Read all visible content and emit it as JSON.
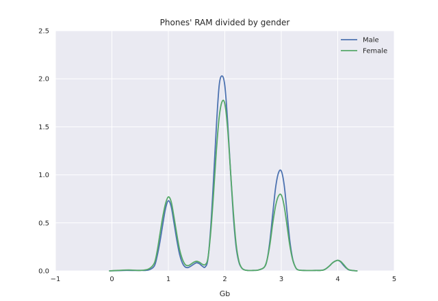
{
  "chart_data": {
    "type": "line",
    "title": "Phones' RAM divided by gender",
    "xlabel": "Gb",
    "ylabel": "",
    "xlim": [
      -1,
      5
    ],
    "ylim": [
      0,
      2.5
    ],
    "xticks": [
      "−1",
      "0",
      "1",
      "2",
      "3",
      "4",
      "5"
    ],
    "yticks": [
      "0.0",
      "0.5",
      "1.0",
      "1.5",
      "2.0",
      "2.5"
    ],
    "grid": true,
    "legend_position": "top-right",
    "series": [
      {
        "name": "Male",
        "color": "#4c72b0",
        "x": [
          -0.05,
          0.2,
          0.5,
          0.65,
          0.75,
          0.8,
          0.85,
          0.9,
          0.95,
          1.0,
          1.05,
          1.1,
          1.15,
          1.2,
          1.25,
          1.3,
          1.35,
          1.4,
          1.45,
          1.5,
          1.55,
          1.6,
          1.65,
          1.7,
          1.75,
          1.8,
          1.85,
          1.9,
          1.95,
          2.0,
          2.05,
          2.1,
          2.15,
          2.2,
          2.25,
          2.3,
          2.35,
          2.4,
          2.5,
          2.6,
          2.7,
          2.75,
          2.8,
          2.85,
          2.9,
          2.95,
          3.0,
          3.05,
          3.1,
          3.15,
          3.2,
          3.25,
          3.3,
          3.4,
          3.6,
          3.75,
          3.85,
          3.9,
          3.95,
          4.0,
          4.05,
          4.1,
          4.15,
          4.2,
          4.3,
          4.35
        ],
        "y": [
          0.0,
          0.005,
          0.005,
          0.01,
          0.05,
          0.15,
          0.3,
          0.48,
          0.65,
          0.73,
          0.67,
          0.5,
          0.32,
          0.17,
          0.08,
          0.04,
          0.035,
          0.05,
          0.07,
          0.085,
          0.075,
          0.05,
          0.04,
          0.12,
          0.45,
          0.95,
          1.5,
          1.93,
          2.03,
          1.93,
          1.55,
          1.05,
          0.58,
          0.25,
          0.09,
          0.03,
          0.01,
          0.005,
          0.005,
          0.01,
          0.04,
          0.12,
          0.32,
          0.6,
          0.87,
          1.02,
          1.04,
          0.9,
          0.62,
          0.32,
          0.13,
          0.04,
          0.01,
          0.005,
          0.005,
          0.01,
          0.05,
          0.08,
          0.1,
          0.11,
          0.095,
          0.06,
          0.03,
          0.01,
          0.002,
          0.0
        ]
      },
      {
        "name": "Female",
        "color": "#55a868",
        "x": [
          -0.05,
          0.1,
          0.3,
          0.5,
          0.65,
          0.75,
          0.8,
          0.85,
          0.9,
          0.95,
          1.0,
          1.05,
          1.1,
          1.15,
          1.2,
          1.25,
          1.3,
          1.35,
          1.4,
          1.45,
          1.5,
          1.55,
          1.6,
          1.65,
          1.7,
          1.75,
          1.8,
          1.85,
          1.9,
          1.95,
          2.0,
          2.05,
          2.1,
          2.15,
          2.2,
          2.25,
          2.3,
          2.35,
          2.4,
          2.5,
          2.6,
          2.7,
          2.75,
          2.8,
          2.85,
          2.9,
          2.95,
          3.0,
          3.05,
          3.1,
          3.15,
          3.2,
          3.25,
          3.3,
          3.4,
          3.6,
          3.75,
          3.85,
          3.9,
          3.95,
          4.0,
          4.05,
          4.1,
          4.15,
          4.2,
          4.3,
          4.35
        ],
        "y": [
          0.0,
          0.005,
          0.01,
          0.005,
          0.02,
          0.08,
          0.2,
          0.38,
          0.56,
          0.7,
          0.77,
          0.72,
          0.56,
          0.38,
          0.22,
          0.12,
          0.065,
          0.055,
          0.07,
          0.09,
          0.1,
          0.09,
          0.07,
          0.065,
          0.13,
          0.4,
          0.8,
          1.25,
          1.6,
          1.76,
          1.74,
          1.48,
          1.05,
          0.62,
          0.28,
          0.1,
          0.03,
          0.01,
          0.005,
          0.005,
          0.01,
          0.04,
          0.12,
          0.28,
          0.5,
          0.68,
          0.78,
          0.79,
          0.68,
          0.48,
          0.27,
          0.12,
          0.04,
          0.01,
          0.005,
          0.005,
          0.01,
          0.05,
          0.08,
          0.1,
          0.11,
          0.1,
          0.07,
          0.035,
          0.012,
          0.002,
          0.0
        ]
      }
    ]
  }
}
